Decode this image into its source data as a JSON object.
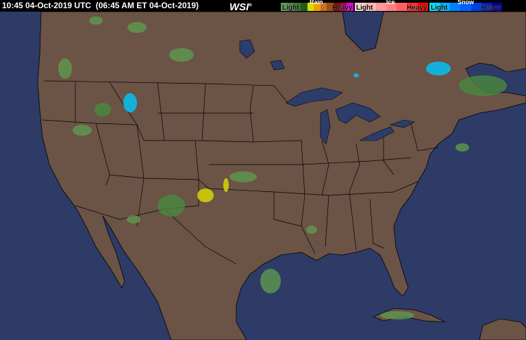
{
  "header": {
    "timestamp": "10:45 04-Oct-2019 UTC  (06:45 AM ET 04-Oct-2019)",
    "logo": "WSI"
  },
  "legend": [
    {
      "type": "Rain",
      "low": "Light",
      "high": "Heavy",
      "colors": [
        "#5e9a4e",
        "#4a8a3e",
        "#3a7430",
        "#245a20",
        "#dddd00",
        "#f0a000",
        "#c86e28",
        "#a05010",
        "#801000",
        "#b00060",
        "#e000e0"
      ]
    },
    {
      "type": "Ice",
      "low": "Light",
      "high": "Heavy",
      "colors": [
        "#ffd0d0",
        "#ffb8b8",
        "#ff9898",
        "#ff8080",
        "#ff6060",
        "#ff3030",
        "#ff0000"
      ]
    },
    {
      "type": "Snow",
      "low": "Light",
      "high": "Heavy",
      "colors": [
        "#00e0ff",
        "#00b0ff",
        "#0080ff",
        "#0060ff",
        "#0040e0",
        "#0020c0",
        "#0000a0"
      ]
    }
  ],
  "map": {
    "ocean_color": "#2d3b66",
    "land_color": "#6b5346",
    "border_color": "#000000",
    "lake_color": "#2b3d6b"
  }
}
